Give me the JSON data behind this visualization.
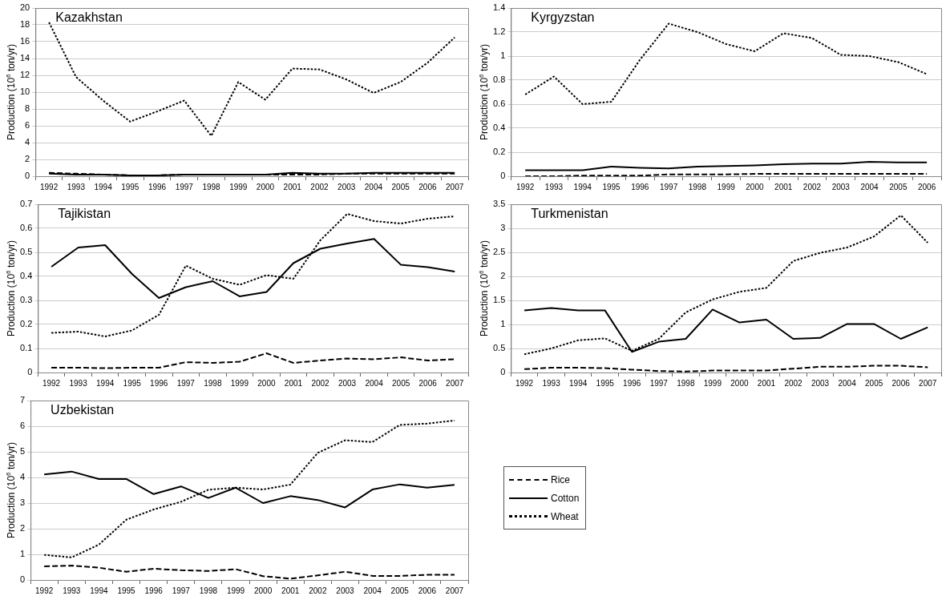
{
  "chart_data": [
    {
      "type": "line",
      "title": "Kazakhstan",
      "ylabel": "Production (10$^{6}$ ton/yr)",
      "categories": [
        "1992",
        "1993",
        "1994",
        "1995",
        "1996",
        "1997",
        "1998",
        "1999",
        "2000",
        "2001",
        "2002",
        "2003",
        "2004",
        "2005",
        "2006",
        "2007"
      ],
      "ylim": [
        0,
        20
      ],
      "yticks": [
        0,
        2,
        4,
        6,
        8,
        10,
        12,
        14,
        16,
        18,
        20
      ],
      "grid": "y",
      "marker": "none",
      "series": [
        {
          "color": "#000000",
          "line_style": "dashed",
          "values": [
            0.4,
            0.3,
            0.2,
            0.1,
            0.1,
            0.2,
            0.2,
            0.2,
            0.2,
            0.2,
            0.2,
            0.3,
            0.3,
            0.3,
            0.3,
            0.3
          ]
        },
        {
          "color": "#000000",
          "line_style": "solid",
          "values": [
            0.3,
            0.2,
            0.2,
            0.1,
            0.1,
            0.2,
            0.2,
            0.2,
            0.2,
            0.4,
            0.3,
            0.3,
            0.4,
            0.4,
            0.4,
            0.4
          ]
        },
        {
          "color": "#000000",
          "line_style": "dotted",
          "values": [
            18.3,
            11.8,
            9.0,
            6.5,
            7.7,
            9.0,
            4.8,
            11.2,
            9.1,
            12.8,
            12.7,
            11.5,
            9.9,
            11.2,
            13.5,
            16.5
          ]
        }
      ]
    },
    {
      "type": "line",
      "title": "Kyrgyzstan",
      "ylabel": "Production (10$^{6}$ ton/yr)",
      "categories": [
        "1992",
        "1993",
        "1994",
        "1995",
        "1996",
        "1997",
        "1998",
        "1999",
        "2000",
        "2001",
        "2002",
        "2003",
        "2004",
        "2005",
        "2006"
      ],
      "ylim": [
        0,
        1.4
      ],
      "yticks": [
        0,
        0.2,
        0.4,
        0.6,
        0.8,
        1,
        1.2,
        1.4
      ],
      "grid": "y",
      "marker": "none",
      "series": [
        {
          "color": "#000000",
          "line_style": "dashed",
          "values": [
            0,
            0,
            0.005,
            0.005,
            0.005,
            0.015,
            0.015,
            0.015,
            0.02,
            0.02,
            0.02,
            0.02,
            0.02,
            0.02,
            0.02
          ]
        },
        {
          "color": "#000000",
          "line_style": "solid",
          "values": [
            0.05,
            0.05,
            0.05,
            0.08,
            0.07,
            0.065,
            0.08,
            0.085,
            0.09,
            0.1,
            0.105,
            0.105,
            0.12,
            0.115,
            0.115
          ]
        },
        {
          "color": "#000000",
          "line_style": "dotted",
          "values": [
            0.68,
            0.83,
            0.6,
            0.62,
            0.97,
            1.27,
            1.2,
            1.1,
            1.04,
            1.19,
            1.15,
            1.01,
            1.0,
            0.95,
            0.85
          ]
        }
      ]
    },
    {
      "type": "line",
      "title": "Tajikistan",
      "ylabel": "Production (10$^{6}$ ton/yr)",
      "categories": [
        "1992",
        "1993",
        "1994",
        "1995",
        "1996",
        "1997",
        "1998",
        "1999",
        "2000",
        "2001",
        "2002",
        "2003",
        "2004",
        "2005",
        "2006",
        "2007"
      ],
      "ylim": [
        0,
        0.7
      ],
      "yticks": [
        0,
        0.1,
        0.2,
        0.3,
        0.4,
        0.5,
        0.6,
        0.7
      ],
      "grid": "y",
      "marker": "none",
      "series": [
        {
          "color": "#000000",
          "line_style": "dashed",
          "values": [
            0.02,
            0.02,
            0.018,
            0.02,
            0.02,
            0.043,
            0.04,
            0.045,
            0.08,
            0.04,
            0.05,
            0.058,
            0.055,
            0.063,
            0.05,
            0.055
          ]
        },
        {
          "color": "#000000",
          "line_style": "solid",
          "values": [
            0.44,
            0.52,
            0.53,
            0.41,
            0.31,
            0.355,
            0.38,
            0.317,
            0.335,
            0.455,
            0.515,
            0.537,
            0.556,
            0.448,
            0.438,
            0.42
          ]
        },
        {
          "color": "#000000",
          "line_style": "dotted",
          "values": [
            0.165,
            0.17,
            0.15,
            0.175,
            0.24,
            0.445,
            0.39,
            0.365,
            0.405,
            0.39,
            0.55,
            0.66,
            0.63,
            0.62,
            0.64,
            0.65
          ]
        }
      ]
    },
    {
      "type": "line",
      "title": "Turkmenistan",
      "ylabel": "Production (10$^{6}$ ton/yr)",
      "categories": [
        "1992",
        "1993",
        "1994",
        "1995",
        "1996",
        "1997",
        "1998",
        "1999",
        "2000",
        "2001",
        "2002",
        "2003",
        "2004",
        "2005",
        "2006",
        "2007"
      ],
      "ylim": [
        0,
        3.5
      ],
      "yticks": [
        0,
        0.5,
        1,
        1.5,
        2,
        2.5,
        3,
        3.5
      ],
      "grid": "y",
      "marker": "none",
      "series": [
        {
          "color": "#000000",
          "line_style": "dashed",
          "values": [
            0.07,
            0.1,
            0.1,
            0.09,
            0.06,
            0.03,
            0.02,
            0.04,
            0.04,
            0.04,
            0.08,
            0.12,
            0.12,
            0.14,
            0.14,
            0.11
          ]
        },
        {
          "color": "#000000",
          "line_style": "solid",
          "values": [
            1.29,
            1.34,
            1.29,
            1.29,
            0.43,
            0.64,
            0.7,
            1.31,
            1.04,
            1.1,
            0.7,
            0.72,
            1.01,
            1.01,
            0.7,
            0.94
          ]
        },
        {
          "color": "#000000",
          "line_style": "dotted",
          "values": [
            0.38,
            0.5,
            0.67,
            0.71,
            0.45,
            0.7,
            1.25,
            1.52,
            1.68,
            1.76,
            2.32,
            2.49,
            2.6,
            2.83,
            3.27,
            2.7
          ]
        }
      ]
    },
    {
      "type": "line",
      "title": "Uzbekistan",
      "ylabel": "Production (10$^{6}$ ton/yr)",
      "categories": [
        "1992",
        "1993",
        "1994",
        "1995",
        "1996",
        "1997",
        "1998",
        "1999",
        "2000",
        "2001",
        "2002",
        "2003",
        "2004",
        "2005",
        "2006",
        "2007"
      ],
      "ylim": [
        0,
        7
      ],
      "yticks": [
        0,
        1,
        2,
        3,
        4,
        5,
        6,
        7
      ],
      "grid": "y",
      "marker": "none",
      "legend": "right",
      "series": [
        {
          "name": "Rice",
          "color": "#000000",
          "line_style": "dashed",
          "values": [
            0.53,
            0.56,
            0.48,
            0.32,
            0.44,
            0.38,
            0.35,
            0.42,
            0.15,
            0.05,
            0.18,
            0.32,
            0.16,
            0.16,
            0.2,
            0.2
          ]
        },
        {
          "name": "Cotton",
          "color": "#000000",
          "line_style": "solid",
          "values": [
            4.12,
            4.23,
            3.94,
            3.94,
            3.35,
            3.65,
            3.2,
            3.6,
            3.0,
            3.27,
            3.12,
            2.83,
            3.53,
            3.73,
            3.6,
            3.71
          ]
        },
        {
          "name": "Wheat",
          "color": "#000000",
          "line_style": "dotted",
          "values": [
            0.98,
            0.88,
            1.38,
            2.35,
            2.75,
            3.05,
            3.52,
            3.6,
            3.53,
            3.72,
            4.96,
            5.45,
            5.38,
            6.05,
            6.1,
            6.22
          ]
        }
      ]
    }
  ]
}
